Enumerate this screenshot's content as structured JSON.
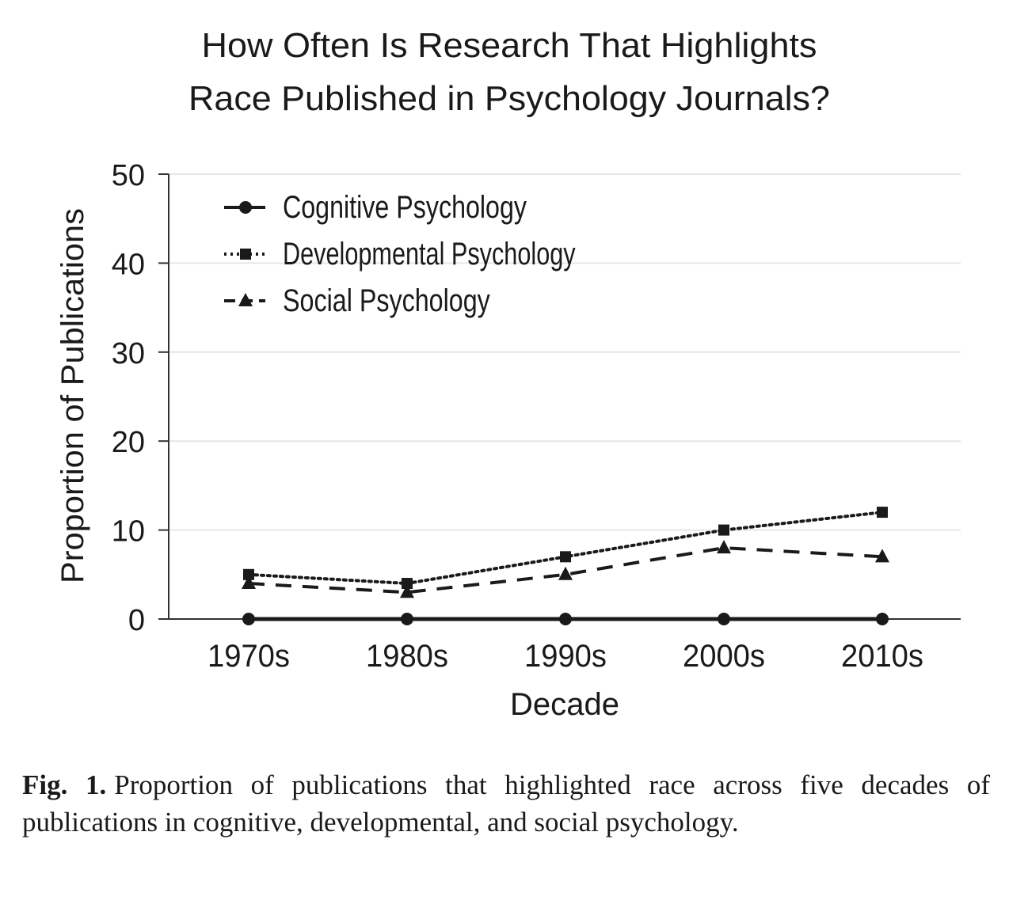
{
  "chart_data": {
    "type": "line",
    "title": [
      "How Often Is Research That Highlights",
      "Race Published in Psychology Journals?"
    ],
    "xlabel": "Decade",
    "ylabel": "Proportion of Publications",
    "categories": [
      "1970s",
      "1980s",
      "1990s",
      "2000s",
      "2010s"
    ],
    "ylim": [
      0,
      50
    ],
    "yticks": [
      0,
      10,
      20,
      30,
      40,
      50
    ],
    "grid": "horizontal",
    "legend_placement": "top-left",
    "series": [
      {
        "name": "Cognitive Psychology",
        "values": [
          0,
          0,
          0,
          0,
          0
        ],
        "line": "solid",
        "marker": "circle"
      },
      {
        "name": "Developmental Psychology",
        "values": [
          5,
          4,
          7,
          10,
          12
        ],
        "line": "dotted",
        "marker": "square"
      },
      {
        "name": "Social Psychology",
        "values": [
          4,
          3,
          5,
          8,
          7
        ],
        "line": "dashed",
        "marker": "triangle"
      }
    ],
    "colors": {
      "series": "#1a1a1a",
      "grid": "#e6e6e6"
    }
  },
  "caption": {
    "label": "Fig. 1.",
    "text": "Proportion of publications that highlighted race across five decades of publications in cognitive, developmental, and social psychology."
  }
}
